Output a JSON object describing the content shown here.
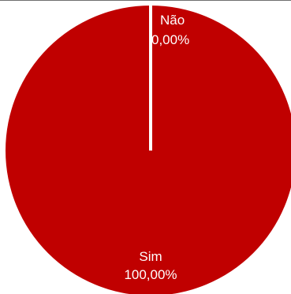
{
  "chart_data": {
    "type": "pie",
    "categories": [
      "Não",
      "Sim"
    ],
    "values": [
      0.0,
      100.0
    ],
    "value_labels": [
      "0,00%",
      "100,00%"
    ],
    "colors": {
      "Sim": "#c00000",
      "Não": "#ffffff",
      "separator": "#ffffff",
      "background": "#ffffff"
    },
    "legend": "none"
  }
}
